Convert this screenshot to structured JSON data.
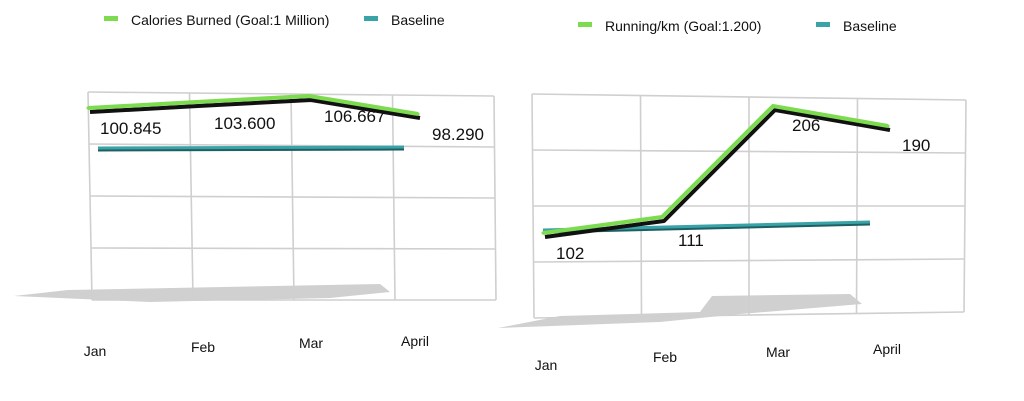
{
  "chart_data": [
    {
      "type": "line",
      "title": "",
      "xlabel": "",
      "ylabel": "",
      "categories": [
        "Jan",
        "Feb",
        "Mar",
        "April"
      ],
      "series": [
        {
          "name": "Calories Burned (Goal:1 Million)",
          "values": [
            100845,
            103600,
            106667,
            98290
          ],
          "labels": [
            "100.845",
            "103.600",
            "106.667",
            "98.290"
          ],
          "color": "#7ddb4f"
        },
        {
          "name": "Baseline",
          "values": [
            70000,
            70000,
            70000,
            70000
          ],
          "color": "#3aa3a8"
        }
      ],
      "ylim": [
        0,
        110000
      ],
      "grid": true,
      "legend": "top"
    },
    {
      "type": "line",
      "title": "",
      "xlabel": "",
      "ylabel": "",
      "categories": [
        "Jan",
        "Feb",
        "Mar",
        "April"
      ],
      "series": [
        {
          "name": "Running/km (Goal:1.200)",
          "values": [
            102,
            111,
            206,
            190
          ],
          "labels": [
            "102",
            "111",
            "206",
            "190"
          ],
          "color": "#7ddb4f"
        },
        {
          "name": "Baseline",
          "values": [
            105,
            106,
            107,
            108
          ],
          "color": "#3aa3a8"
        }
      ],
      "ylim": [
        0,
        240
      ],
      "grid": true,
      "legend": "top"
    }
  ]
}
